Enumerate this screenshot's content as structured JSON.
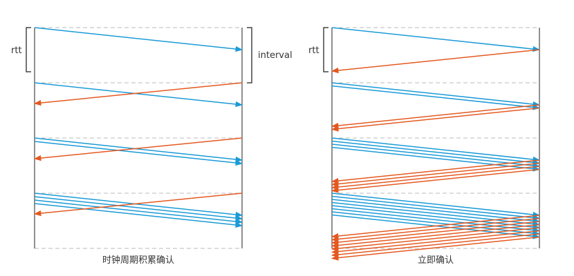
{
  "colors": {
    "send": "#1a9ad6",
    "ack": "#e4581f",
    "line": "#222222",
    "dash": "#bbbbbb",
    "bracket": "#444444"
  },
  "panels": [
    {
      "id": "clock",
      "caption": "时钟周期积累确认",
      "rtt_label": "rtt",
      "interval_label": "interval",
      "rounds": [
        {
          "sends": 1,
          "acks": 1,
          "ack_in_same_round": false
        },
        {
          "sends": 1,
          "acks": 1,
          "ack_in_same_round": false
        },
        {
          "sends": 2,
          "acks": 1,
          "ack_in_same_round": false
        },
        {
          "sends": 4,
          "acks": 1,
          "ack_in_same_round": false
        }
      ]
    },
    {
      "id": "immediate",
      "caption": "立即确认",
      "rtt_label": "rtt",
      "rounds": [
        {
          "sends": 1,
          "acks": 1,
          "ack_in_same_round": true
        },
        {
          "sends": 2,
          "acks": 2,
          "ack_in_same_round": true
        },
        {
          "sends": 4,
          "acks": 4,
          "ack_in_same_round": true
        },
        {
          "sends": 8,
          "acks": 8,
          "ack_in_same_round": true
        }
      ]
    }
  ]
}
